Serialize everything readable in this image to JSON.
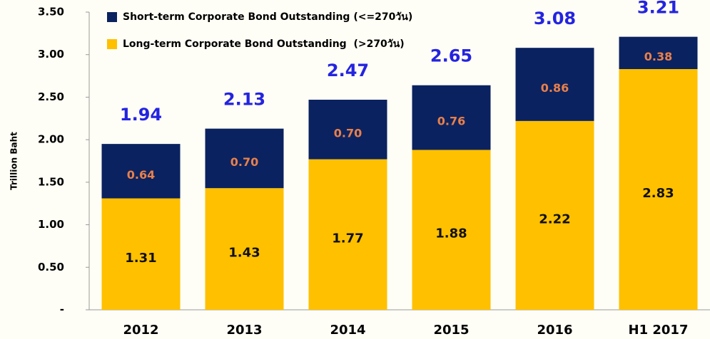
{
  "chart_data": {
    "type": "stacked_bar",
    "ylabel": "Trillion Baht",
    "categories": [
      "2012",
      "2013",
      "2014",
      "2015",
      "2016",
      "H1 2017"
    ],
    "series": [
      {
        "name": "Long-term Corporate Bond Outstanding  (>270วัน)",
        "color": "#ffc000",
        "label_color": "#111111",
        "values": [
          1.31,
          1.43,
          1.77,
          1.88,
          2.22,
          2.83
        ]
      },
      {
        "name": "Short-term Corporate Bond Outstanding (<=270วัน)",
        "color": "#0b2260",
        "label_color": "#e8804a",
        "values": [
          0.64,
          0.7,
          0.7,
          0.76,
          0.86,
          0.38
        ],
        "value_labels": [
          "0.64",
          "0.70",
          "0.70",
          "0.76",
          "0.86",
          "0.38"
        ]
      }
    ],
    "totals": [
      1.94,
      2.13,
      2.47,
      2.65,
      3.08,
      3.21
    ],
    "totals_color": "#2424e0",
    "ylim": [
      0,
      3.5
    ],
    "yticks": [
      {
        "value": 0,
        "label": "-"
      },
      {
        "value": 0.5,
        "label": "0.50"
      },
      {
        "value": 1,
        "label": "1.00"
      },
      {
        "value": 1.5,
        "label": "1.50"
      },
      {
        "value": 2,
        "label": "2.00"
      },
      {
        "value": 2.5,
        "label": "2.50"
      },
      {
        "value": 3,
        "label": "3.00"
      },
      {
        "value": 3.5,
        "label": "3.50"
      }
    ]
  }
}
